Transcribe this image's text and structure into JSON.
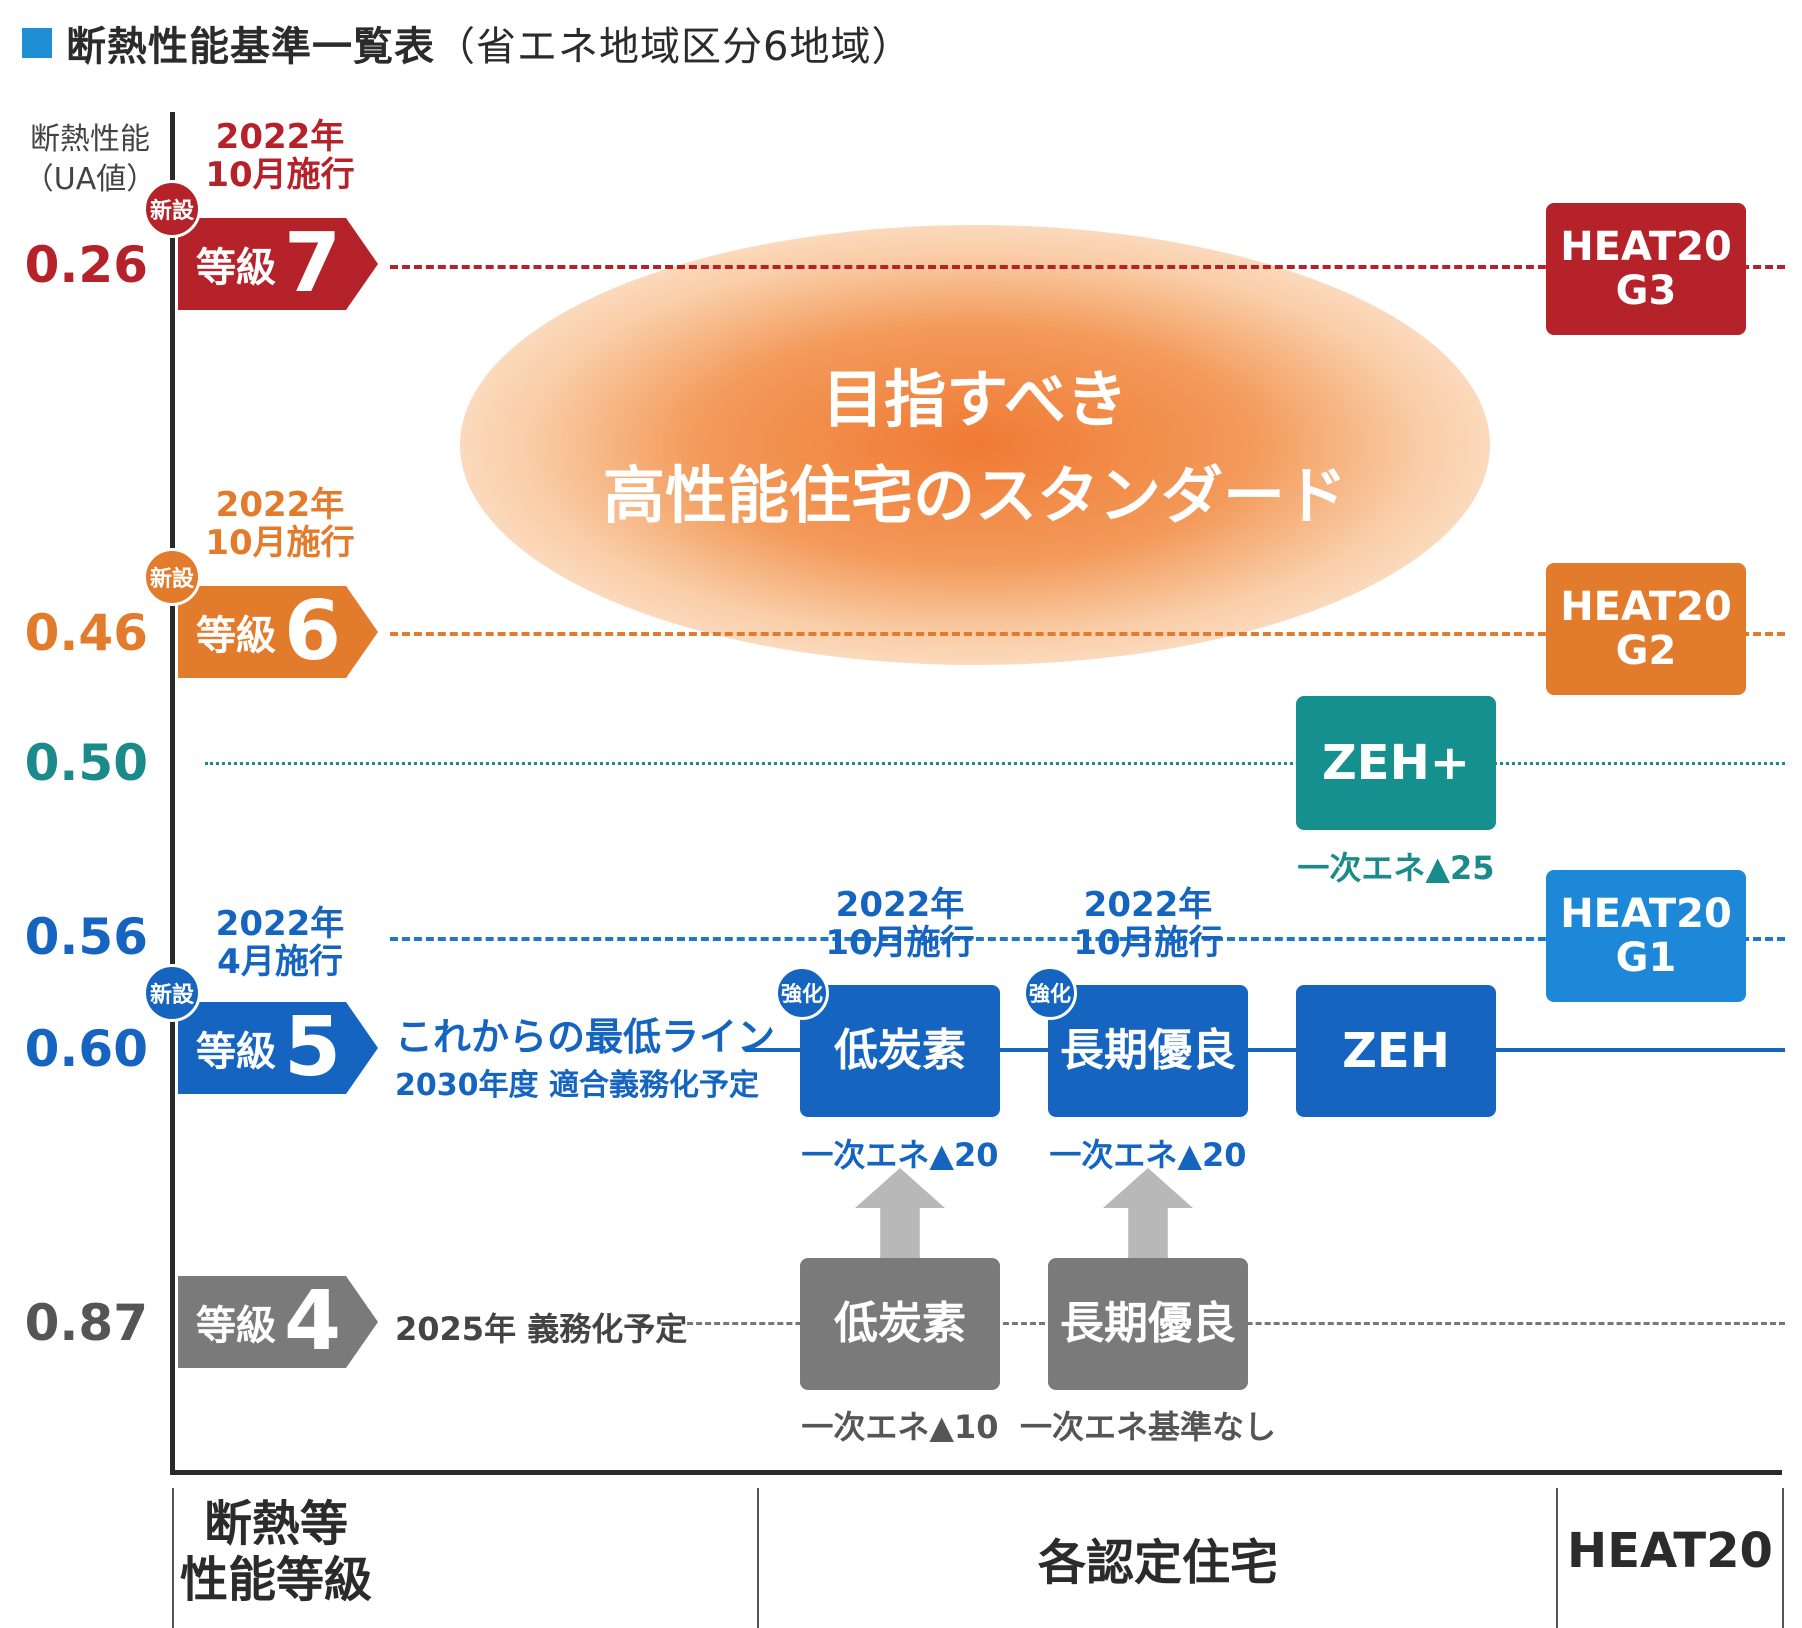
{
  "title": {
    "main": "断熱性能基準一覧表",
    "sub": "（省エネ地域区分6地域）"
  },
  "y_axis": {
    "title_line1": "断熱性能",
    "title_line2": "（UA値）"
  },
  "ua_values": {
    "v026": "0.26",
    "v046": "0.46",
    "v050": "0.50",
    "v056": "0.56",
    "v060": "0.60",
    "v087": "0.87"
  },
  "grades": {
    "g7": {
      "label": "等級",
      "num": "7",
      "badge": "新設",
      "date1": "2022年",
      "date2": "10月施行"
    },
    "g6": {
      "label": "等級",
      "num": "6",
      "badge": "新設",
      "date1": "2022年",
      "date2": "10月施行"
    },
    "g5": {
      "label": "等級",
      "num": "5",
      "badge": "新設",
      "date1": "2022年",
      "date2": "4月施行",
      "desc1": "これからの最低ライン",
      "desc2": "2030年度 適合義務化予定"
    },
    "g4": {
      "label": "等級",
      "num": "4",
      "desc": "2025年 義務化予定"
    }
  },
  "center": {
    "line1": "目指すべき",
    "line2": "高性能住宅のスタンダード"
  },
  "certs": {
    "lowcarbon_new": {
      "label": "低炭素",
      "tag": "強化",
      "date1": "2022年",
      "date2": "10月施行",
      "note": "一次エネ▲20"
    },
    "longterm_new": {
      "label": "長期優良",
      "tag": "強化",
      "date1": "2022年",
      "date2": "10月施行",
      "note": "一次エネ▲20"
    },
    "zeh": {
      "label": "ZEH"
    },
    "zeh_plus": {
      "label": "ZEH+",
      "note": "一次エネ▲25"
    },
    "lowcarbon_old": {
      "label": "低炭素",
      "note": "一次エネ▲10"
    },
    "longterm_old": {
      "label": "長期優良",
      "note": "一次エネ基準なし"
    }
  },
  "heat20": {
    "g3": {
      "line1": "HEAT20",
      "line2": "G3"
    },
    "g2": {
      "line1": "HEAT20",
      "line2": "G2"
    },
    "g1": {
      "line1": "HEAT20",
      "line2": "G1"
    }
  },
  "categories": {
    "grade_line1": "断熱等",
    "grade_line2": "性能等級",
    "certified": "各認定住宅",
    "heat20": "HEAT20"
  },
  "colors": {
    "grade7": "#b5222a",
    "grade6": "#e27b2c",
    "zeh_plus": "#15908f",
    "grade5": "#1565c0",
    "grade4": "#7a7a7a",
    "heat20_g1": "#1e88d8"
  },
  "chart_data": {
    "type": "table",
    "title": "断熱性能基準一覧表（省エネ地域区分6地域）",
    "ylabel": "断熱性能（UA値）",
    "rows": [
      {
        "ua": 0.26,
        "grade": "等級7",
        "certified": [],
        "heat20": "HEAT20 G3"
      },
      {
        "ua": 0.46,
        "grade": "等級6",
        "certified": [],
        "heat20": "HEAT20 G2"
      },
      {
        "ua": 0.5,
        "grade": "",
        "certified": [
          "ZEH+ 一次エネ▲25"
        ],
        "heat20": ""
      },
      {
        "ua": 0.56,
        "grade": "",
        "certified": [],
        "heat20": "HEAT20 G1"
      },
      {
        "ua": 0.6,
        "grade": "等級5",
        "certified": [
          "低炭素 一次エネ▲20",
          "長期優良 一次エネ▲20",
          "ZEH"
        ],
        "heat20": ""
      },
      {
        "ua": 0.87,
        "grade": "等級4",
        "certified": [
          "低炭素 一次エネ▲10",
          "長期優良 一次エネ基準なし"
        ],
        "heat20": ""
      }
    ]
  }
}
